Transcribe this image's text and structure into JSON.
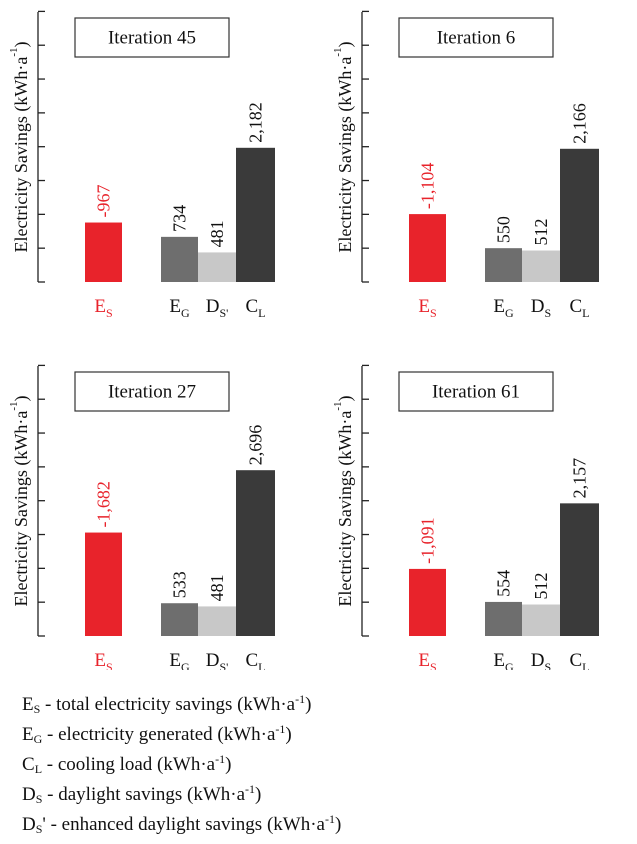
{
  "chart_data": [
    {
      "type": "bar",
      "title": "Iteration 45",
      "ylabel": "Electricity Savings (kWh·a-1)",
      "categories": [
        "ES",
        "EG",
        "DS'",
        "CL"
      ],
      "values": [
        967,
        734,
        481,
        2182
      ],
      "value_labels": [
        "-967",
        "734",
        "481",
        "2,182"
      ],
      "colors": [
        "#e8232b",
        "#6e6e6e",
        "#c8c8c8",
        "#3a3a3a"
      ]
    },
    {
      "type": "bar",
      "title": "Iteration 6",
      "ylabel": "Electricity Savings (kWh·a-1)",
      "categories": [
        "ES",
        "EG",
        "DS",
        "CL"
      ],
      "values": [
        1104,
        550,
        512,
        2166
      ],
      "value_labels": [
        "-1,104",
        "550",
        "512",
        "2,166"
      ],
      "colors": [
        "#e8232b",
        "#6e6e6e",
        "#c8c8c8",
        "#3a3a3a"
      ]
    },
    {
      "type": "bar",
      "title": "Iteration 27",
      "ylabel": "Electricity Savings (kWh·a-1)",
      "categories": [
        "ES",
        "EG",
        "DS'",
        "CL"
      ],
      "values": [
        1682,
        533,
        481,
        2696
      ],
      "value_labels": [
        "-1,682",
        "533",
        "481",
        "2,696"
      ],
      "colors": [
        "#e8232b",
        "#6e6e6e",
        "#c8c8c8",
        "#3a3a3a"
      ]
    },
    {
      "type": "bar",
      "title": "Iteration 61",
      "ylabel": "Electricity Savings (kWh·a-1)",
      "categories": [
        "ES",
        "EG",
        "DS",
        "CL"
      ],
      "values": [
        1091,
        554,
        512,
        2157
      ],
      "value_labels": [
        "-1,091",
        "554",
        "512",
        "2,157"
      ],
      "colors": [
        "#e8232b",
        "#6e6e6e",
        "#c8c8c8",
        "#3a3a3a"
      ]
    }
  ],
  "legend": [
    {
      "symbol": "E",
      "sub": "S",
      "prime": "",
      "text": " - total electricity savings (kWh·a",
      "sup": "-1",
      "end": ")"
    },
    {
      "symbol": "E",
      "sub": "G",
      "prime": "",
      "text": " - electricity generated (kWh·a",
      "sup": "-1",
      "end": ")"
    },
    {
      "symbol": "C",
      "sub": "L",
      "prime": "",
      "text": " - cooling load (kWh·a",
      "sup": "-1",
      "end": ")"
    },
    {
      "symbol": "D",
      "sub": "S",
      "prime": "",
      "text": " - daylight savings (kWh·a",
      "sup": "-1",
      "end": ")"
    },
    {
      "symbol": "D",
      "sub": "S",
      "prime": "'",
      "text": " - enhanced daylight savings (kWh·a",
      "sup": "-1",
      "end": ")"
    }
  ]
}
